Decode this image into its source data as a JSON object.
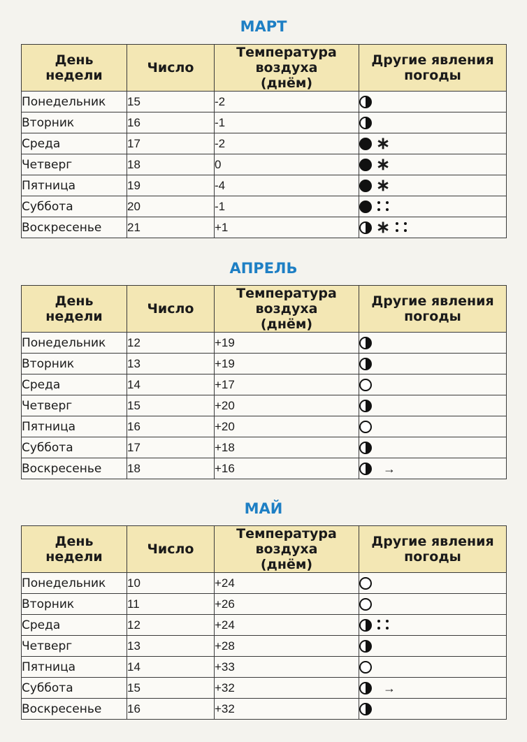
{
  "headers": {
    "day": "День недели",
    "number": "Число",
    "temp": "Температура воздуха (днём)",
    "other": "Другие явления погоды"
  },
  "months": [
    {
      "title": "МАРТ",
      "rows": [
        {
          "day": "Понедельник",
          "num": "15",
          "temp": "-2",
          "weather": [
            "partly"
          ]
        },
        {
          "day": "Вторник",
          "num": "16",
          "temp": "-1",
          "weather": [
            "partly"
          ]
        },
        {
          "day": "Среда",
          "num": "17",
          "temp": "-2",
          "weather": [
            "overcast",
            "snow"
          ]
        },
        {
          "day": "Четверг",
          "num": "18",
          "temp": "0",
          "weather": [
            "overcast",
            "snow"
          ]
        },
        {
          "day": "Пятница",
          "num": "19",
          "temp": "-4",
          "weather": [
            "overcast",
            "snow"
          ]
        },
        {
          "day": "Суббота",
          "num": "20",
          "temp": "-1",
          "weather": [
            "overcast",
            "rain"
          ]
        },
        {
          "day": "Воскресенье",
          "num": "21",
          "temp": "+1",
          "weather": [
            "partly",
            "snow",
            "rain"
          ]
        }
      ]
    },
    {
      "title": "АПРЕЛЬ",
      "rows": [
        {
          "day": "Понедельник",
          "num": "12",
          "temp": "+19",
          "weather": [
            "partly"
          ]
        },
        {
          "day": "Вторник",
          "num": "13",
          "temp": "+19",
          "weather": [
            "partly"
          ]
        },
        {
          "day": "Среда",
          "num": "14",
          "temp": "+17",
          "weather": [
            "clear"
          ]
        },
        {
          "day": "Четверг",
          "num": "15",
          "temp": "+20",
          "weather": [
            "partly"
          ]
        },
        {
          "day": "Пятница",
          "num": "16",
          "temp": "+20",
          "weather": [
            "clear"
          ]
        },
        {
          "day": "Суббота",
          "num": "17",
          "temp": "+18",
          "weather": [
            "partly"
          ]
        },
        {
          "day": "Воскресенье",
          "num": "18",
          "temp": "+16",
          "weather": [
            "partly",
            "wind"
          ]
        }
      ]
    },
    {
      "title": "МАЙ",
      "rows": [
        {
          "day": "Понедельник",
          "num": "10",
          "temp": "+24",
          "weather": [
            "clear"
          ]
        },
        {
          "day": "Вторник",
          "num": "11",
          "temp": "+26",
          "weather": [
            "clear"
          ]
        },
        {
          "day": "Среда",
          "num": "12",
          "temp": "+24",
          "weather": [
            "partly",
            "rain"
          ]
        },
        {
          "day": "Четверг",
          "num": "13",
          "temp": "+28",
          "weather": [
            "partly"
          ]
        },
        {
          "day": "Пятница",
          "num": "14",
          "temp": "+33",
          "weather": [
            "clear"
          ]
        },
        {
          "day": "Суббота",
          "num": "15",
          "temp": "+32",
          "weather": [
            "partly",
            "wind"
          ]
        },
        {
          "day": "Воскресенье",
          "num": "16",
          "temp": "+32",
          "weather": [
            "partly"
          ]
        }
      ]
    }
  ]
}
